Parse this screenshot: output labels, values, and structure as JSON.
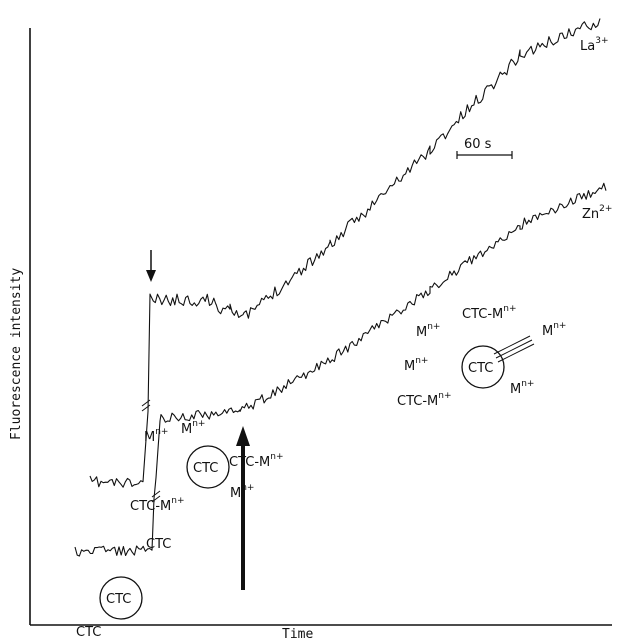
{
  "chart_data": {
    "type": "line",
    "xlabel": "Time",
    "ylabel": "Fluorescence   intensity",
    "scale_bar": "60 s",
    "traces": [
      {
        "label_base": "La",
        "label_sup": "3+"
      },
      {
        "label_base": "Zn",
        "label_sup": "2+"
      }
    ],
    "annotations": {
      "ctc_start": "CTC",
      "ctc_circle_bottom": "CTC",
      "ctc_bottom_label": "CTC",
      "ctc_m_lower": "CTC-M",
      "m_a": "M",
      "m_b": "M",
      "ctc_circle_mid": "CTC",
      "ctc_m_mid": "CTC-M",
      "m_arrow": "M",
      "n_plus": "n+",
      "inset": {
        "m1": "M",
        "ctc_m1": "CTC-M",
        "m2": "M",
        "m3": "M",
        "ctc_center": "CTC",
        "ctc_m2": "CTC-M",
        "m4": "M"
      }
    }
  }
}
